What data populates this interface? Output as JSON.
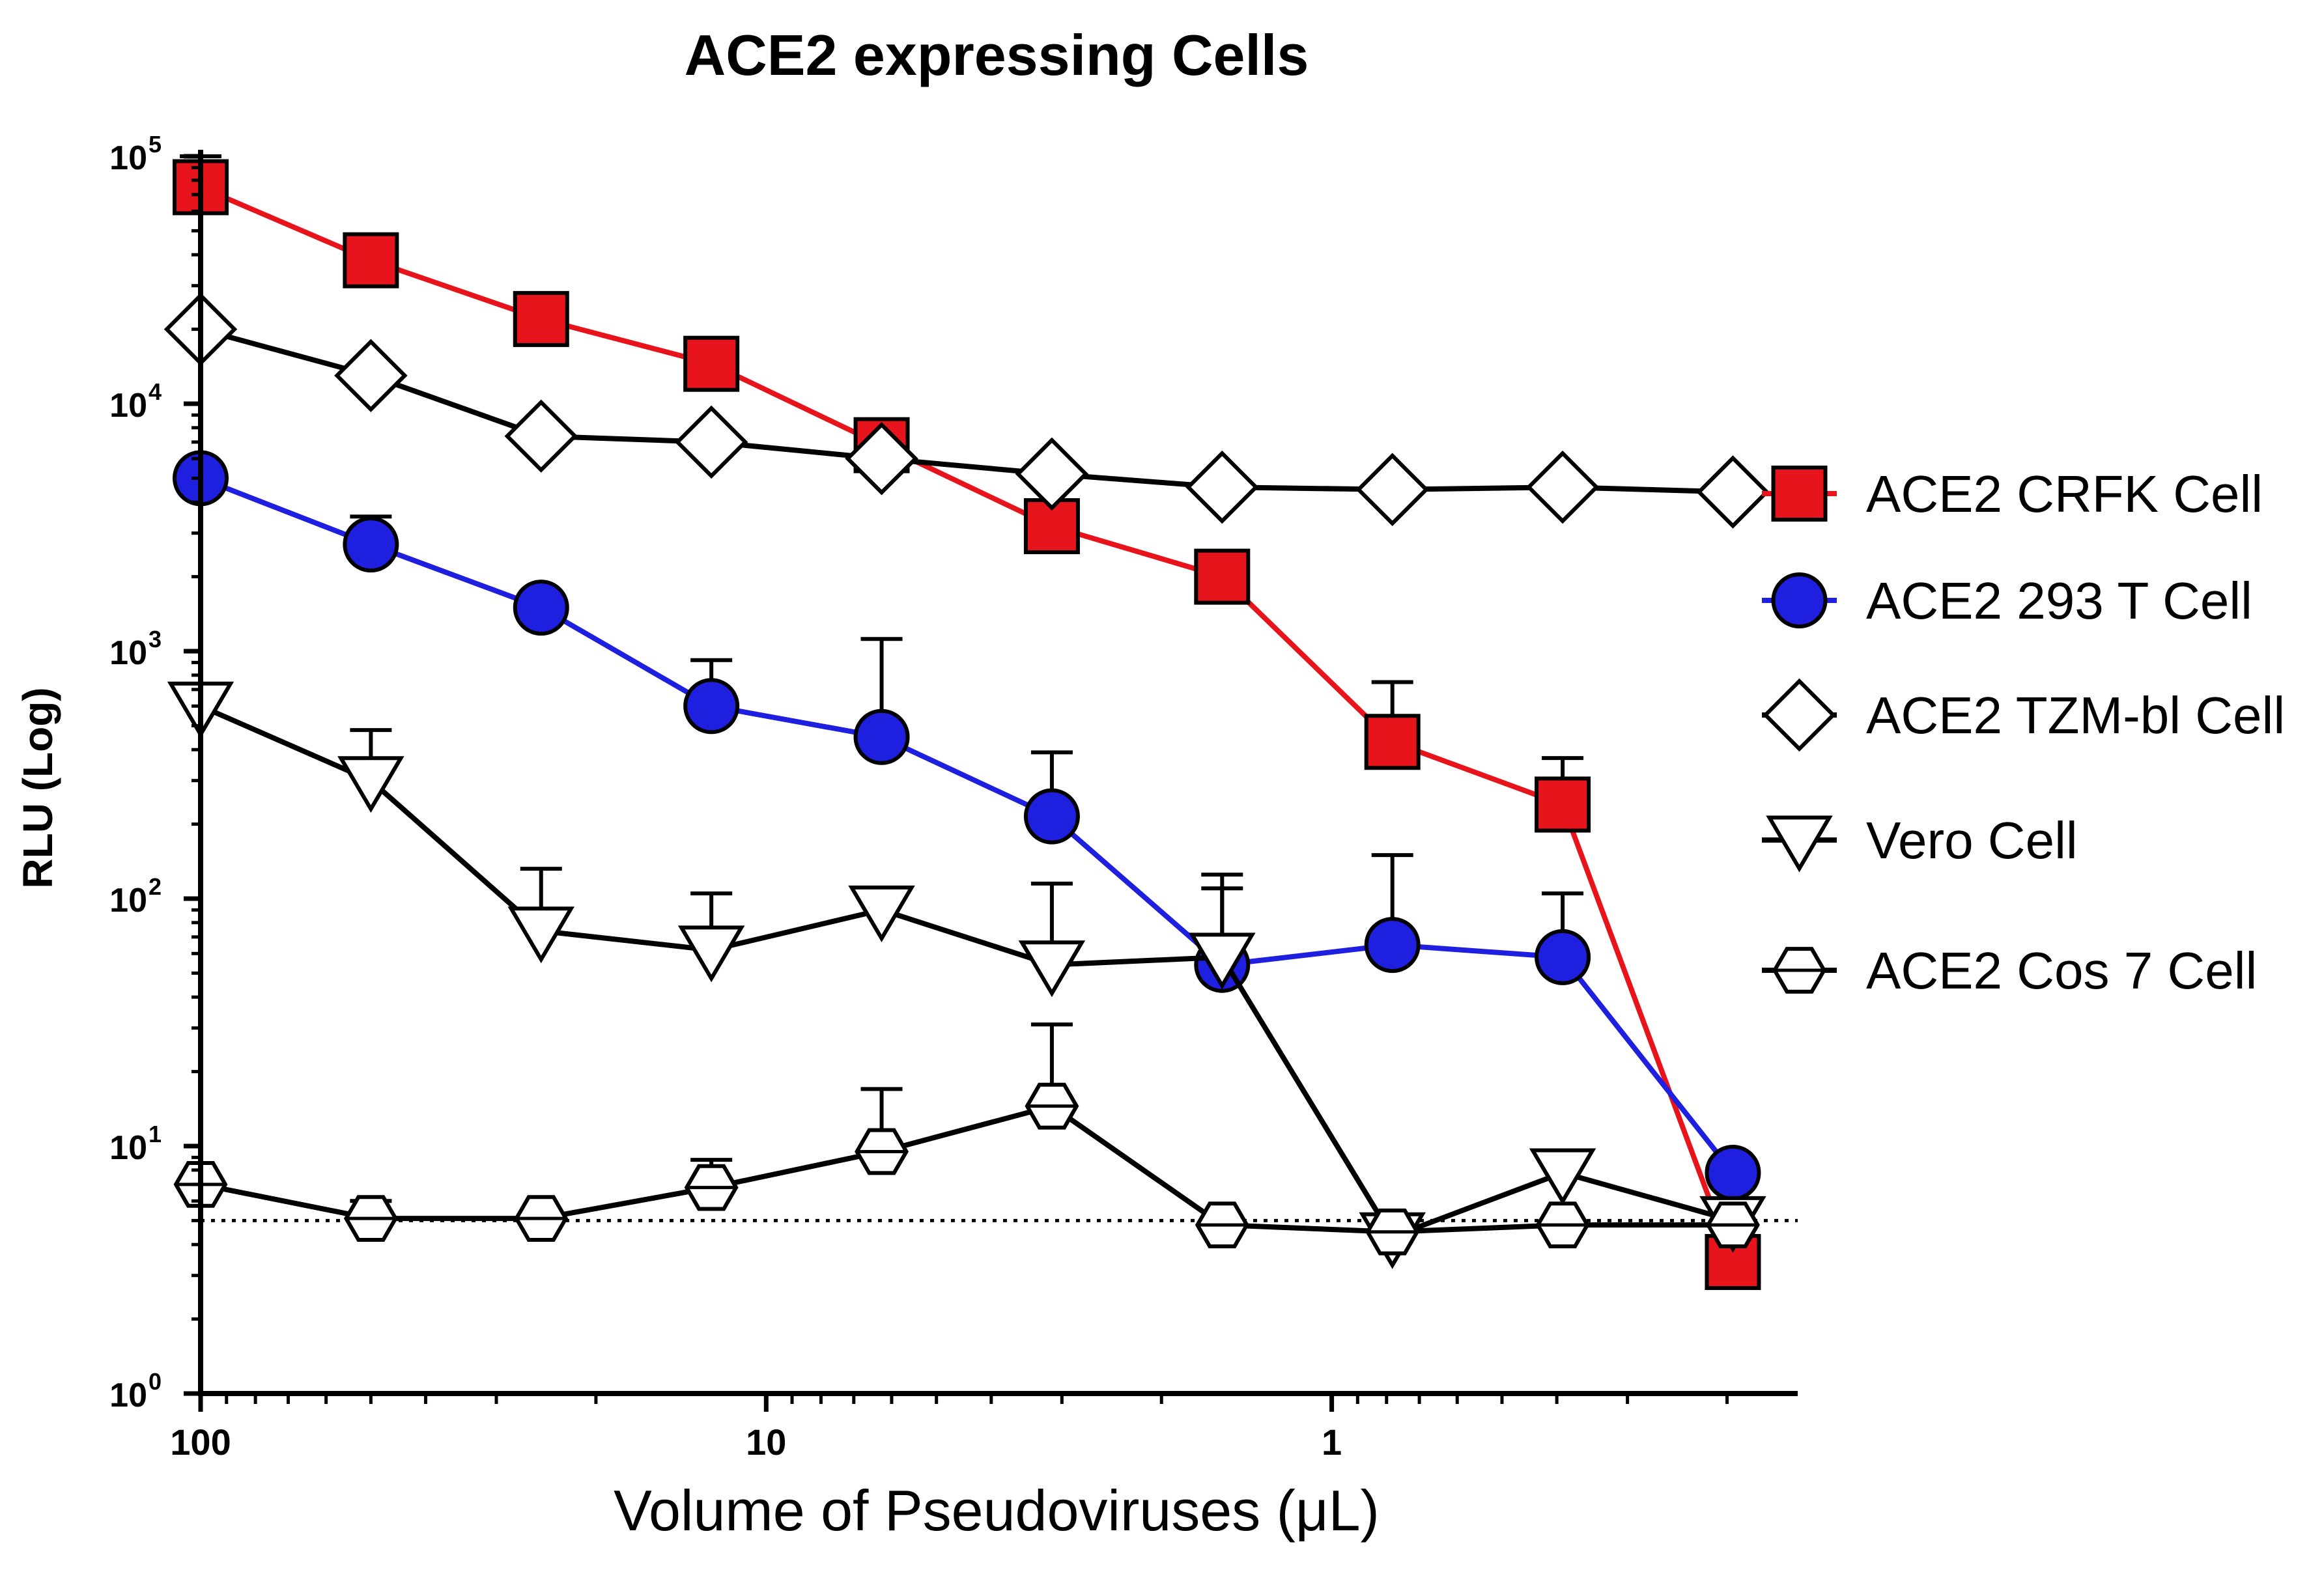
{
  "chart_data": {
    "type": "line",
    "title": "ACE2 expressing Cells",
    "xlabel": "Volume of Pseudoviruses (μL)",
    "ylabel": "RLU (Log)",
    "x_scale": "log",
    "x_reversed": true,
    "y_scale": "log",
    "xlim": [
      100,
      0.15
    ],
    "ylim": [
      1,
      100000
    ],
    "x": [
      100,
      50,
      25,
      12.5,
      6.25,
      3.125,
      1.5625,
      0.78125,
      0.390625,
      0.1953125
    ],
    "x_ticks": [
      {
        "value": 100,
        "label": "100"
      },
      {
        "value": 10,
        "label": "10"
      },
      {
        "value": 1,
        "label": "1"
      }
    ],
    "y_ticks": [
      {
        "value": 1,
        "base": "10",
        "exp": "0"
      },
      {
        "value": 10,
        "base": "10",
        "exp": "1"
      },
      {
        "value": 100,
        "base": "10",
        "exp": "2"
      },
      {
        "value": 1000,
        "base": "10",
        "exp": "3"
      },
      {
        "value": 10000,
        "base": "10",
        "exp": "4"
      },
      {
        "value": 100000,
        "base": "10",
        "exp": "5"
      }
    ],
    "reference_line": {
      "y": 5,
      "style": "dotted"
    },
    "legend_position": "right",
    "series": [
      {
        "name": "ACE2 CRFK Cell",
        "color": "#e8141c",
        "marker": "square",
        "marker_fill": "#e8141c",
        "values": [
          75000,
          38000,
          22000,
          14500,
          6800,
          3200,
          2000,
          430,
          240,
          3.4
        ],
        "error_upper": [
          100000,
          48000,
          27000,
          17000,
          8300,
          null,
          2400,
          750,
          370,
          null
        ]
      },
      {
        "name": "ACE2 293 T Cell",
        "color": "#1f1fe0",
        "marker": "circle",
        "marker_fill": "#1f1fe0",
        "values": [
          5000,
          2700,
          1500,
          600,
          450,
          215,
          54,
          65,
          58,
          7.8
        ],
        "error_upper": [
          null,
          3500,
          1750,
          920,
          1120,
          390,
          110,
          150,
          105,
          null
        ]
      },
      {
        "name": "ACE2 TZM-bl Cell",
        "color": "#000000",
        "marker": "diamond",
        "marker_fill": "#ffffff",
        "values": [
          20000,
          13000,
          7400,
          7000,
          6000,
          5200,
          4600,
          4500,
          4600,
          4400
        ],
        "error_upper": [
          null,
          null,
          null,
          null,
          null,
          null,
          null,
          null,
          null,
          null
        ]
      },
      {
        "name": "Vero Cell",
        "color": "#000000",
        "marker": "triangle-down",
        "marker_fill": "#ffffff",
        "values": [
          600,
          300,
          74,
          62,
          90,
          54,
          58,
          4.3,
          7.8,
          5.0
        ],
        "error_upper": [
          null,
          480,
          132,
          105,
          108,
          115,
          125,
          null,
          null,
          null
        ]
      },
      {
        "name": "ACE2 Cos 7 Cell",
        "color": "#000000",
        "marker": "hexagon",
        "marker_fill": "#ffffff",
        "values": [
          7.0,
          5.1,
          5.1,
          6.8,
          9.5,
          14.5,
          4.8,
          4.5,
          4.8,
          4.8
        ],
        "error_upper": [
          null,
          6.0,
          null,
          8.8,
          17,
          31,
          null,
          null,
          null,
          null
        ]
      }
    ]
  }
}
